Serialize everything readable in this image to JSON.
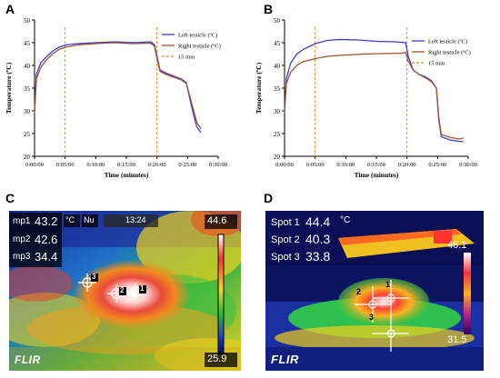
{
  "panels": {
    "A": {
      "letter": "A"
    },
    "B": {
      "letter": "B"
    },
    "C": {
      "letter": "C",
      "readouts": [
        {
          "label": "mp1",
          "value": "43.2"
        },
        {
          "label": "mp2",
          "value": "42.6"
        },
        {
          "label": "mp3",
          "value": "34.4"
        }
      ],
      "unit": "°C",
      "mode": "Nu",
      "time": "13:24",
      "scale_max": "44.6",
      "scale_min": "25.9",
      "brand": "FLIR",
      "markers": [
        "3",
        "2",
        "1"
      ]
    },
    "D": {
      "letter": "D",
      "readouts": [
        {
          "label": "Spot 1",
          "value": "44.4"
        },
        {
          "label": "Spot 2",
          "value": "40.3"
        },
        {
          "label": "Spot 3",
          "value": "33.8"
        }
      ],
      "unit": "°C",
      "scale_max": "46.1",
      "scale_min": "31.5",
      "brand": "FLIR",
      "markers": [
        "1",
        "2",
        "3"
      ]
    }
  },
  "chart_data": [
    {
      "type": "line",
      "panel": "A",
      "xlabel": "Time (minutes)",
      "ylabel": "Temperature (ºC)",
      "xticks": [
        "0:00:00",
        "0:05:00",
        "0:10:00",
        "0:15:00",
        "0:20:00",
        "0:25:00",
        "0:30:00"
      ],
      "xlim": [
        0,
        30
      ],
      "ylim": [
        20,
        50
      ],
      "yticks": [
        20,
        25,
        30,
        35,
        40,
        45,
        50
      ],
      "legend": "top-right",
      "vlines": [
        5,
        20
      ],
      "series": [
        {
          "name": "Left testicle (ºC)",
          "color": "#3b3bd6",
          "points": [
            [
              0,
              30
            ],
            [
              0.3,
              38
            ],
            [
              1,
              40.5
            ],
            [
              2,
              42
            ],
            [
              3,
              43.2
            ],
            [
              4,
              44
            ],
            [
              5,
              44.5
            ],
            [
              7,
              44.8
            ],
            [
              10,
              45
            ],
            [
              13,
              45.2
            ],
            [
              16,
              45
            ],
            [
              19,
              45.2
            ],
            [
              19.6,
              44.5
            ],
            [
              20,
              42
            ],
            [
              20.5,
              39
            ],
            [
              21.5,
              38.3
            ],
            [
              23,
              37.5
            ],
            [
              24,
              37
            ],
            [
              24.8,
              36.2
            ],
            [
              25.3,
              33
            ],
            [
              26,
              29
            ],
            [
              26.5,
              26.5
            ],
            [
              27.2,
              25.2
            ]
          ]
        },
        {
          "name": "Right testicle (ºC)",
          "color": "#a0522d",
          "points": [
            [
              0,
              29.5
            ],
            [
              0.3,
              37
            ],
            [
              1,
              39.5
            ],
            [
              2,
              41.3
            ],
            [
              3,
              42.6
            ],
            [
              4,
              43.5
            ],
            [
              5,
              44
            ],
            [
              7,
              44.5
            ],
            [
              10,
              44.8
            ],
            [
              13,
              45
            ],
            [
              16,
              44.8
            ],
            [
              19,
              44.9
            ],
            [
              19.6,
              44.2
            ],
            [
              20,
              41.5
            ],
            [
              20.5,
              38.7
            ],
            [
              21.5,
              38
            ],
            [
              23,
              37.3
            ],
            [
              24,
              36.8
            ],
            [
              24.8,
              36
            ],
            [
              25.3,
              33.5
            ],
            [
              26,
              30
            ],
            [
              26.5,
              27.5
            ],
            [
              27.2,
              26
            ]
          ]
        },
        {
          "name": "15 min",
          "color": "#e08a1e",
          "dashed": true,
          "points": []
        }
      ]
    },
    {
      "type": "line",
      "panel": "B",
      "xlabel": "Time (minutes)",
      "ylabel": "Temperature (ºC)",
      "xticks": [
        "0:00:00",
        "0:05:00",
        "0:10:00",
        "0:15:00",
        "0:20:00",
        "0:25:00",
        "0:30:00"
      ],
      "xlim": [
        0,
        30
      ],
      "ylim": [
        20,
        50
      ],
      "yticks": [
        20,
        25,
        30,
        35,
        40,
        45,
        50
      ],
      "legend": "right",
      "vlines": [
        5,
        20
      ],
      "series": [
        {
          "name": "Left testicle (ºC)",
          "color": "#3b3bd6",
          "points": [
            [
              0,
              30
            ],
            [
              0.3,
              37
            ],
            [
              1,
              40.5
            ],
            [
              2,
              42.5
            ],
            [
              3,
              43.5
            ],
            [
              5,
              44.8
            ],
            [
              7,
              45.5
            ],
            [
              9,
              45.7
            ],
            [
              12,
              45.6
            ],
            [
              15,
              45.3
            ],
            [
              18,
              45.2
            ],
            [
              19.8,
              45
            ],
            [
              20.2,
              42
            ],
            [
              21,
              39
            ],
            [
              22,
              38
            ],
            [
              23,
              37.5
            ],
            [
              24,
              36.6
            ],
            [
              24.8,
              35
            ],
            [
              25.2,
              28
            ],
            [
              25.6,
              24.3
            ],
            [
              27,
              23.6
            ],
            [
              28.5,
              23.3
            ],
            [
              29.2,
              23.2
            ]
          ]
        },
        {
          "name": "Right testicle (ºC)",
          "color": "#a0522d",
          "points": [
            [
              0,
              29.5
            ],
            [
              0.3,
              36
            ],
            [
              1,
              38.5
            ],
            [
              2,
              40
            ],
            [
              3,
              40.8
            ],
            [
              5,
              41.5
            ],
            [
              7,
              42
            ],
            [
              10,
              42.3
            ],
            [
              13,
              42.5
            ],
            [
              16,
              42.6
            ],
            [
              19,
              42.7
            ],
            [
              19.8,
              42.8
            ],
            [
              20.2,
              41
            ],
            [
              21,
              39
            ],
            [
              22,
              38
            ],
            [
              23,
              37.3
            ],
            [
              24,
              36.4
            ],
            [
              24.8,
              35
            ],
            [
              25.2,
              28.5
            ],
            [
              25.6,
              24.8
            ],
            [
              27,
              24.2
            ],
            [
              28.5,
              23.8
            ],
            [
              29.2,
              24
            ]
          ]
        },
        {
          "name": "15 min",
          "color": "#e08a1e",
          "dashed": true,
          "points": []
        }
      ]
    }
  ]
}
